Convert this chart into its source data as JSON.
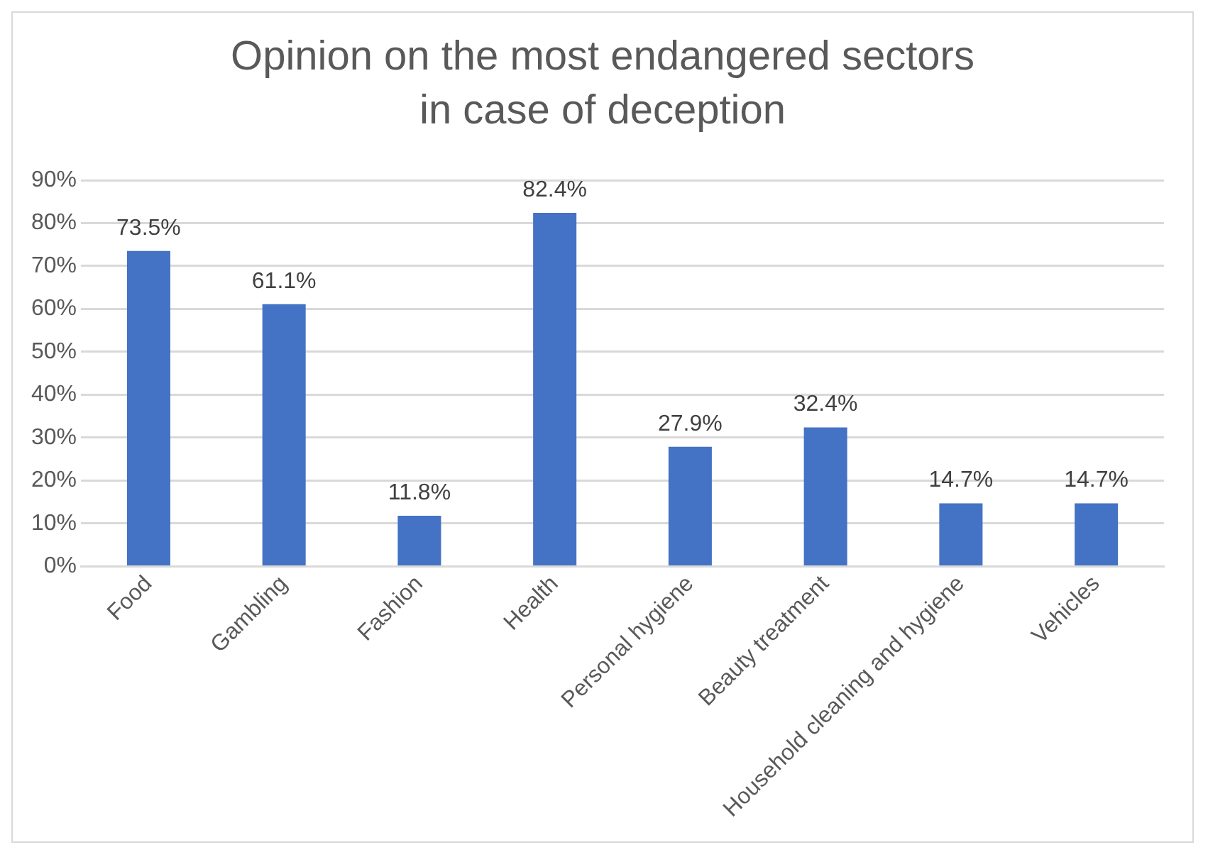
{
  "chart_data": {
    "type": "bar",
    "title": "Opinion on the most endangered sectors in case of deception",
    "categories": [
      "Food",
      "Gambling",
      "Fashion",
      "Health",
      "Personal hygiene",
      "Beauty treatment",
      "Household cleaning and hygiene",
      "Vehicles"
    ],
    "values": [
      73.5,
      61.1,
      11.8,
      82.4,
      27.9,
      32.4,
      14.7,
      14.7
    ],
    "value_labels": [
      "73.5%",
      "61.1%",
      "11.8%",
      "82.4%",
      "27.9%",
      "32.4%",
      "14.7%",
      "14.7%"
    ],
    "color": "#4472c4",
    "ylim": [
      0,
      90
    ],
    "yticks": [
      {
        "value": 0,
        "label": "0%"
      },
      {
        "value": 10,
        "label": "10%"
      },
      {
        "value": 20,
        "label": "20%"
      },
      {
        "value": 30,
        "label": "30%"
      },
      {
        "value": 40,
        "label": "40%"
      },
      {
        "value": 50,
        "label": "50%"
      },
      {
        "value": 60,
        "label": "60%"
      },
      {
        "value": 70,
        "label": "70%"
      },
      {
        "value": 80,
        "label": "80%"
      },
      {
        "value": 90,
        "label": "90%"
      }
    ],
    "grid": "y",
    "legend": false
  }
}
